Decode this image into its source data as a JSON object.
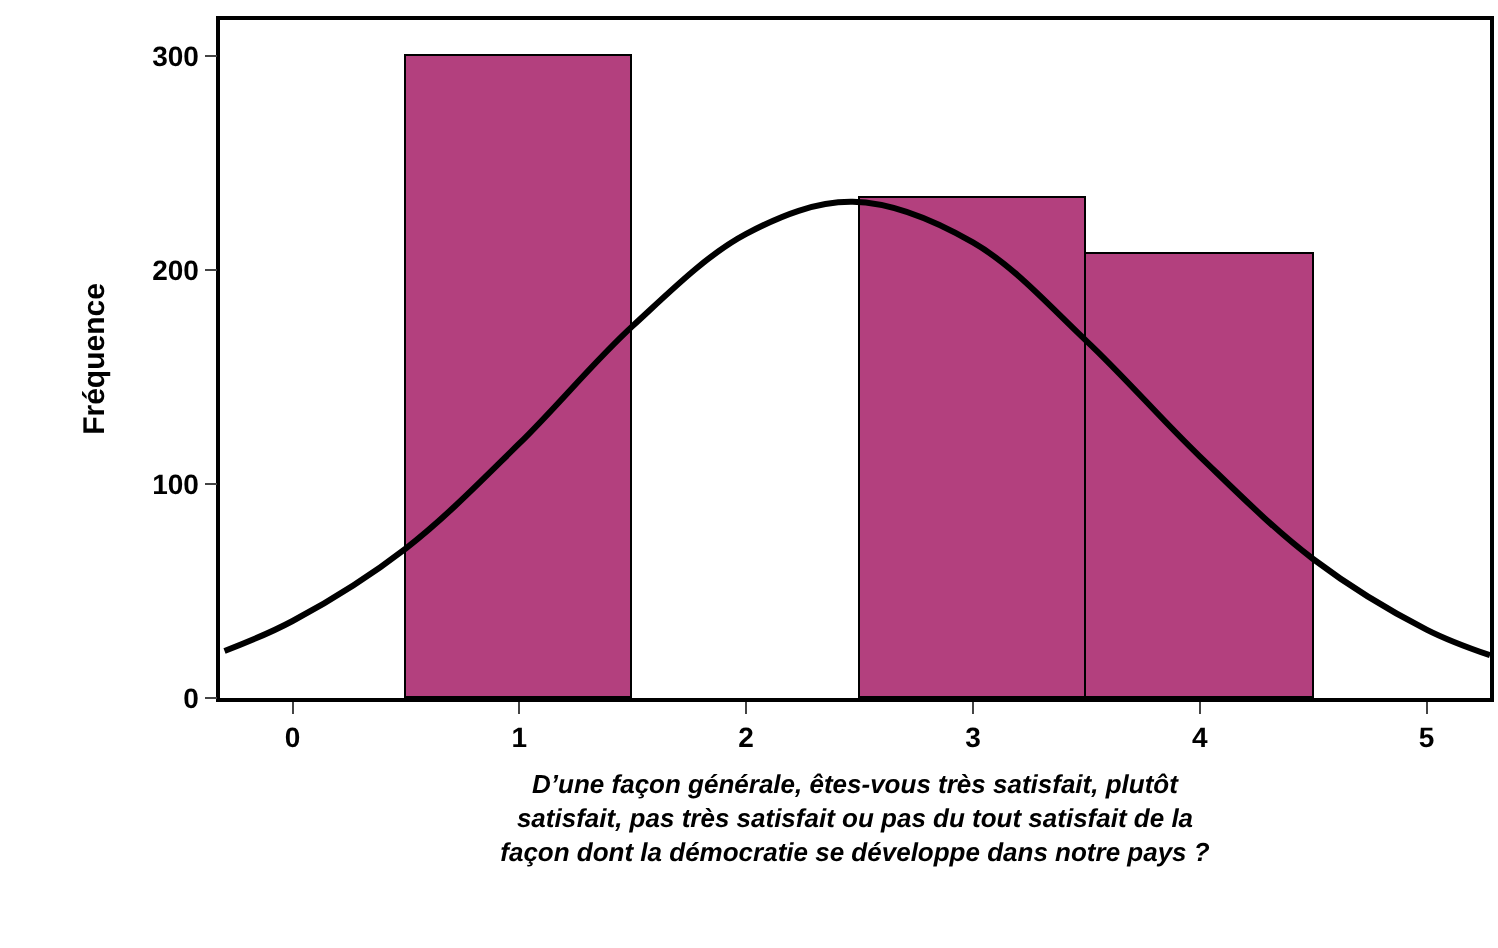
{
  "chart_data": {
    "type": "histogram",
    "xlabel": "D’une façon générale, êtes-vous très satisfait, plutôt satisfait, pas très satisfait ou pas du tout satisfait de la façon dont la démocratie se développe dans notre pays ?",
    "ylabel": "Fréquence",
    "bins": [
      0.5,
      1.5,
      2.5,
      3.5,
      4.5
    ],
    "values": [
      300,
      0,
      234,
      208
    ],
    "color": "#b3407e",
    "series": [
      {
        "type": "line",
        "color": "#000000",
        "x": [
          -0.3,
          0,
          0.5,
          1,
          1.5,
          2,
          2.47,
          3,
          3.5,
          4,
          4.5,
          5,
          5.28
        ],
        "values": [
          22,
          36,
          70,
          119,
          174,
          217,
          232,
          213,
          167,
          113,
          65,
          32,
          20
        ]
      }
    ],
    "xlim": [
      -0.32,
      5.28
    ],
    "xticks": [
      0,
      1,
      2,
      3,
      4,
      5
    ],
    "ylim": [
      0,
      317
    ],
    "yticks": [
      0,
      100,
      200,
      300
    ],
    "grid": false
  }
}
